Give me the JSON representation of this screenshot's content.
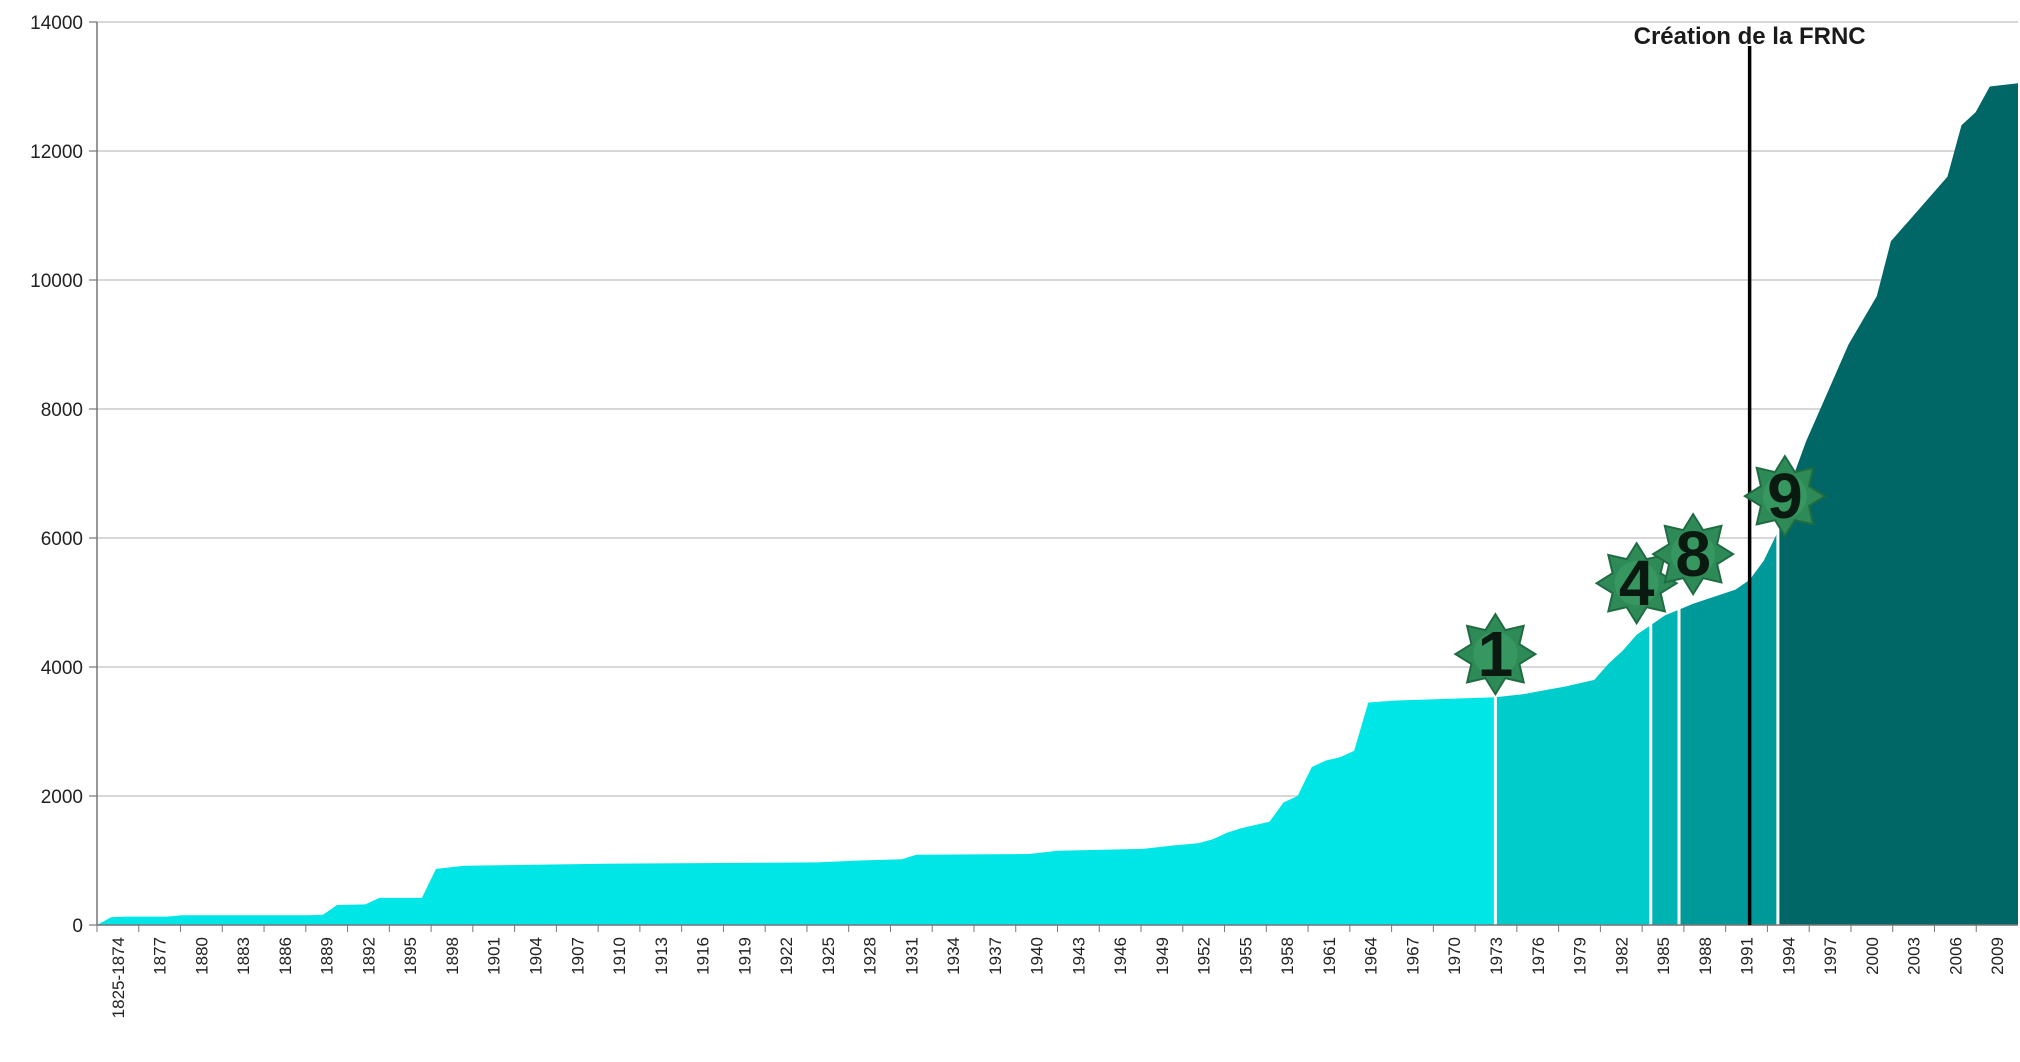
{
  "chart_data": {
    "type": "area",
    "title": "",
    "xlabel": "",
    "ylabel": "",
    "ylim": [
      0,
      14000
    ],
    "y_ticks": [
      0,
      2000,
      4000,
      6000,
      8000,
      10000,
      12000,
      14000
    ],
    "grid": true,
    "x_tick_labels": [
      "1825-1874",
      "1877",
      "1880",
      "1883",
      "1886",
      "1889",
      "1892",
      "1895",
      "1898",
      "1901",
      "1904",
      "1907",
      "1910",
      "1913",
      "1916",
      "1919",
      "1922",
      "1925",
      "1928",
      "1931",
      "1934",
      "1937",
      "1940",
      "1943",
      "1946",
      "1949",
      "1952",
      "1955",
      "1958",
      "1961",
      "1964",
      "1967",
      "1970",
      "1973",
      "1976",
      "1979",
      "1982",
      "1985",
      "1988",
      "1991",
      "1994",
      "1997",
      "2000",
      "2003",
      "2006",
      "2009"
    ],
    "x_range": [
      1874,
      2010
    ],
    "points": [
      [
        1874,
        0
      ],
      [
        1875,
        120
      ],
      [
        1876,
        130
      ],
      [
        1879,
        130
      ],
      [
        1880,
        150
      ],
      [
        1889,
        150
      ],
      [
        1890,
        160
      ],
      [
        1891,
        310
      ],
      [
        1893,
        320
      ],
      [
        1894,
        420
      ],
      [
        1897,
        420
      ],
      [
        1898,
        870
      ],
      [
        1900,
        920
      ],
      [
        1910,
        950
      ],
      [
        1925,
        970
      ],
      [
        1928,
        1000
      ],
      [
        1931,
        1020
      ],
      [
        1932,
        1090
      ],
      [
        1940,
        1100
      ],
      [
        1942,
        1150
      ],
      [
        1948,
        1180
      ],
      [
        1950,
        1230
      ],
      [
        1952,
        1270
      ],
      [
        1953,
        1330
      ],
      [
        1954,
        1430
      ],
      [
        1955,
        1500
      ],
      [
        1957,
        1600
      ],
      [
        1958,
        1900
      ],
      [
        1959,
        2000
      ],
      [
        1960,
        2450
      ],
      [
        1961,
        2550
      ],
      [
        1962,
        2600
      ],
      [
        1963,
        2700
      ],
      [
        1964,
        3450
      ],
      [
        1966,
        3480
      ],
      [
        1973,
        3530
      ],
      [
        1975,
        3580
      ],
      [
        1978,
        3700
      ],
      [
        1980,
        3800
      ],
      [
        1981,
        4050
      ],
      [
        1982,
        4250
      ],
      [
        1983,
        4500
      ],
      [
        1984,
        4650
      ],
      [
        1985,
        4800
      ],
      [
        1987,
        4980
      ],
      [
        1990,
        5200
      ],
      [
        1991,
        5350
      ],
      [
        1992,
        5650
      ],
      [
        1993,
        6100
      ],
      [
        1994,
        6900
      ],
      [
        1995,
        7500
      ],
      [
        1996,
        8000
      ],
      [
        1998,
        9000
      ],
      [
        2000,
        9750
      ],
      [
        2001,
        10600
      ],
      [
        2003,
        11100
      ],
      [
        2005,
        11600
      ],
      [
        2006,
        12400
      ],
      [
        2007,
        12600
      ],
      [
        2008,
        13000
      ],
      [
        2010,
        13050
      ]
    ],
    "segments": [
      {
        "from": 1874,
        "to": 1973,
        "color": "#00e5e5"
      },
      {
        "from": 1973,
        "to": 1984,
        "color": "#00cccc"
      },
      {
        "from": 1984,
        "to": 1986,
        "color": "#00b3b3"
      },
      {
        "from": 1986,
        "to": 1993,
        "color": "#009999"
      },
      {
        "from": 1993,
        "to": 2010,
        "color": "#006666"
      }
    ],
    "annotations": [
      {
        "type": "vline",
        "x": 1991,
        "label": "Création de la FRNC",
        "color": "#000000"
      },
      {
        "type": "badge",
        "x": 1973,
        "y": 4200,
        "text": "1"
      },
      {
        "type": "badge",
        "x": 1983,
        "y": 5300,
        "text": "4"
      },
      {
        "type": "badge",
        "x": 1987,
        "y": 5750,
        "text": "8"
      },
      {
        "type": "badge",
        "x": 1993.5,
        "y": 6650,
        "text": "9"
      }
    ],
    "badge_color": "#2e8b57",
    "grid_color": "#c0c0c0"
  }
}
